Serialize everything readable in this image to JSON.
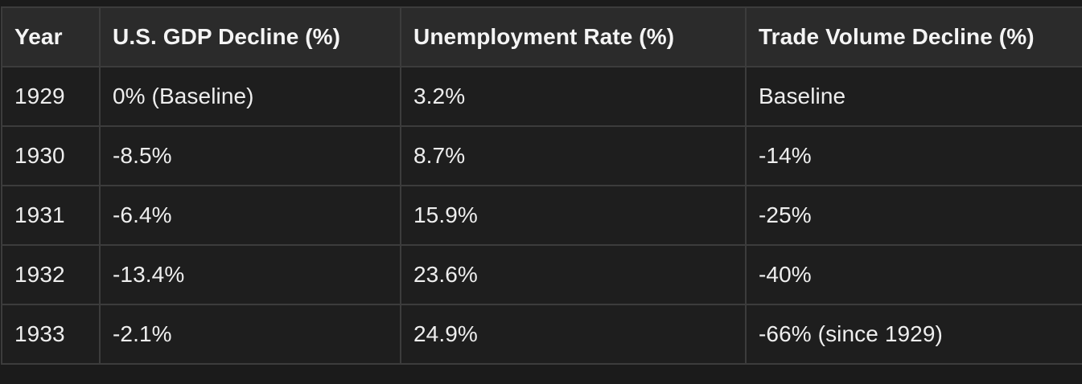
{
  "table": {
    "headers": [
      "Year",
      "U.S. GDP Decline (%)",
      "Unemployment Rate (%)",
      "Trade Volume Decline (%)"
    ],
    "rows": [
      [
        "1929",
        "0% (Baseline)",
        "3.2%",
        "Baseline"
      ],
      [
        "1930",
        "-8.5%",
        "8.7%",
        "-14%"
      ],
      [
        "1931",
        "-6.4%",
        "15.9%",
        "-25%"
      ],
      [
        "1932",
        "-13.4%",
        "23.6%",
        "-40%"
      ],
      [
        "1933",
        "-2.1%",
        "24.9%",
        "-66% (since 1929)"
      ]
    ]
  }
}
